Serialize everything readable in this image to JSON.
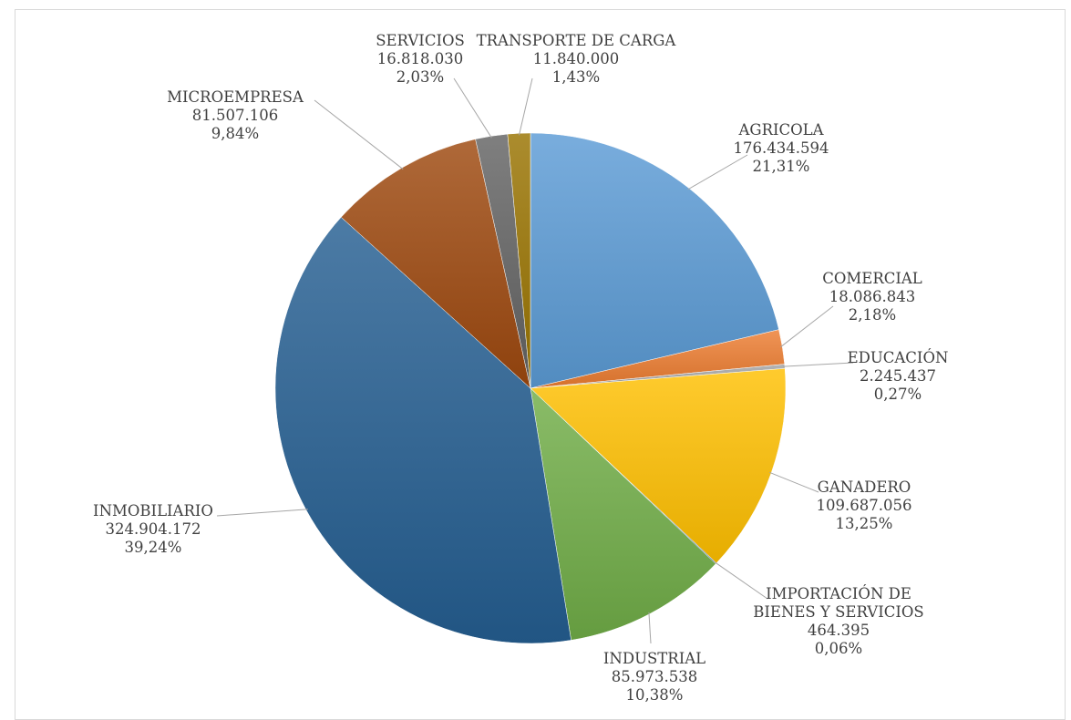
{
  "chart_data": {
    "type": "pie",
    "title": "",
    "legend": "none",
    "slices": [
      {
        "label": "AGRICOLA",
        "value_text": "176.434.594",
        "pct_text": "21,31%",
        "value": 176434594,
        "color": "#5b9bd5"
      },
      {
        "label": "COMERCIAL",
        "value_text": "18.086.843",
        "pct_text": "2,18%",
        "value": 18086843,
        "color": "#ed7d31"
      },
      {
        "label": "EDUCACIÓN",
        "value_text": "2.245.437",
        "pct_text": "0,27%",
        "value": 2245437,
        "color": "#a5a5a5"
      },
      {
        "label": "GANADERO",
        "value_text": "109.687.056",
        "pct_text": "13,25%",
        "value": 109687056,
        "color": "#ffc000"
      },
      {
        "label": "IMPORTACIÓN DE BIENES Y SERVICIOS",
        "label_lines": [
          "IMPORTACIÓN DE",
          "BIENES Y SERVICIOS"
        ],
        "value_text": "464.395",
        "pct_text": "0,06%",
        "value": 464395,
        "color": "#4472c4"
      },
      {
        "label": "INDUSTRIAL",
        "value_text": "85.973.538",
        "pct_text": "10,38%",
        "value": 85973538,
        "color": "#70ad47"
      },
      {
        "label": "INMOBILIARIO",
        "value_text": "324.904.172",
        "pct_text": "39,24%",
        "value": 324904172,
        "color": "#255e91"
      },
      {
        "label": "MICROEMPRESA",
        "value_text": "81.507.106",
        "pct_text": "9,84%",
        "value": 81507106,
        "color": "#9e480e"
      },
      {
        "label": "SERVICIOS",
        "value_text": "16.818.030",
        "pct_text": "2,03%",
        "value": 16818030,
        "color": "#636363"
      },
      {
        "label": "TRANSPORTE DE CARGA",
        "value_text": "11.840.000",
        "pct_text": "1,43%",
        "value": 11840000,
        "color": "#997300"
      }
    ]
  }
}
